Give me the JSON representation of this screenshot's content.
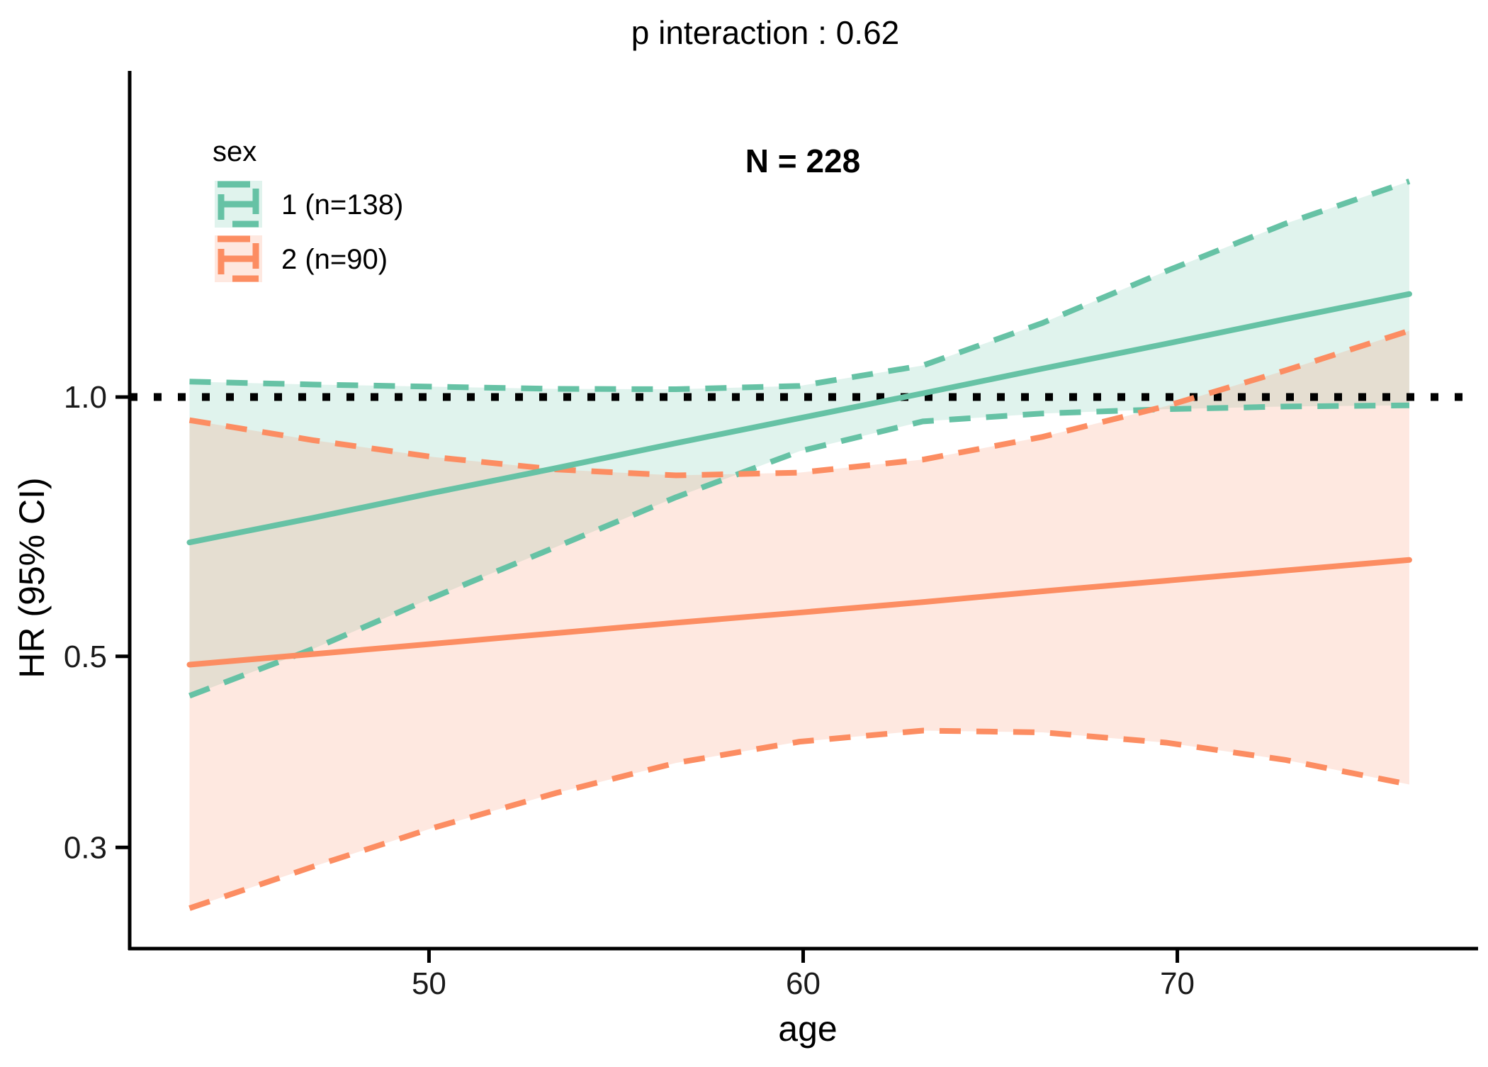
{
  "title": "p interaction : 0.62",
  "annotation": "N = 228",
  "legend": {
    "title": "sex",
    "items": [
      {
        "label": "1 (n=138)",
        "color": "#66c2a5"
      },
      {
        "label": "2 (n=90)",
        "color": "#fc8d62"
      }
    ]
  },
  "chart_data": {
    "type": "line",
    "title": "p interaction : 0.62",
    "subtitle": "N = 228",
    "xlabel": "age",
    "ylabel": "HR (95% CI)",
    "y_scale": "log10",
    "xlim": [
      42,
      78
    ],
    "ylim": [
      0.23,
      2.39
    ],
    "x_ticks": [
      50,
      60,
      70
    ],
    "x_tick_labels": [
      "50",
      "60",
      "70"
    ],
    "y_ticks": [
      1.0,
      0.5,
      0.3
    ],
    "y_tick_labels": [
      "1.0",
      "0.5",
      "0.3"
    ],
    "reference_line_y": 1.0,
    "grid": "off",
    "legend_position": "inside-top-left",
    "x": [
      43.6,
      46.9,
      50.1,
      53.4,
      56.6,
      59.9,
      63.2,
      66.4,
      69.7,
      72.9,
      76.2
    ],
    "series": [
      {
        "name": "1 (n=138)",
        "group": "sex = 1",
        "color": "#66c2a5",
        "hr": [
          0.678,
          0.724,
          0.774,
          0.827,
          0.884,
          0.945,
          1.01,
          1.079,
          1.153,
          1.232,
          1.317
        ],
        "lower": [
          0.45,
          0.51,
          0.585,
          0.67,
          0.765,
          0.865,
          0.937,
          0.957,
          0.968,
          0.975,
          0.978
        ],
        "upper": [
          1.042,
          1.034,
          1.028,
          1.022,
          1.021,
          1.03,
          1.088,
          1.219,
          1.4,
          1.59,
          1.78
        ]
      },
      {
        "name": "2 (n=90)",
        "group": "sex = 2",
        "color": "#fc8d62",
        "hr": [
          0.489,
          0.503,
          0.517,
          0.532,
          0.547,
          0.562,
          0.578,
          0.595,
          0.612,
          0.629,
          0.647
        ],
        "lower": [
          0.255,
          0.285,
          0.316,
          0.347,
          0.376,
          0.398,
          0.41,
          0.408,
          0.397,
          0.379,
          0.355
        ],
        "upper": [
          0.94,
          0.891,
          0.852,
          0.824,
          0.811,
          0.817,
          0.846,
          0.899,
          0.976,
          1.074,
          1.194
        ]
      }
    ],
    "colors": {
      "reference_line": "#000000",
      "axis": "#000000",
      "tick_label": "#1a1a1a",
      "ribbon_alpha": 0.2
    }
  }
}
